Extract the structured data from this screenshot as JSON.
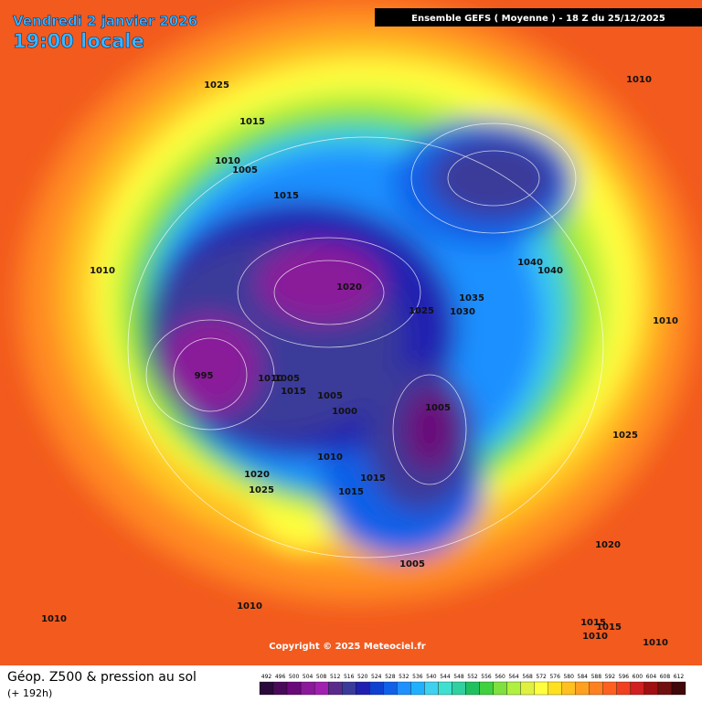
{
  "header": {
    "date": "Vendredi 2 janvier 2026",
    "time": "19:00 locale",
    "model": "Ensemble GEFS  ( Moyenne )  -  18 Z du 25/12/2025"
  },
  "isobar_labels": [
    1025,
    1015,
    1010,
    1005,
    1015,
    1010,
    1010,
    1020,
    1025,
    1030,
    1035,
    1040,
    1040,
    1010,
    995,
    1010,
    1005,
    1015,
    1005,
    1000,
    1005,
    1025,
    1010,
    1015,
    1020,
    1025,
    1015,
    1005,
    1020,
    1010,
    1010,
    1015,
    1015,
    1010,
    1010
  ],
  "copyright": "Copyright © 2025 Meteociel.fr",
  "footer": {
    "title": "Géop. Z500 & pression au sol",
    "lead": "(+ 192h)"
  },
  "scale": {
    "values": [
      492,
      496,
      500,
      504,
      508,
      512,
      516,
      520,
      524,
      528,
      532,
      536,
      540,
      544,
      548,
      552,
      556,
      560,
      564,
      568,
      572,
      576,
      580,
      584,
      588,
      592,
      596,
      600,
      604,
      608,
      612
    ],
    "colors": [
      "#2a0a3a",
      "#4a0a5a",
      "#6a0a7a",
      "#8a1a9a",
      "#a020b0",
      "#5a2a8a",
      "#3a3a9a",
      "#2020b0",
      "#1040d0",
      "#1060e8",
      "#1e90ff",
      "#20b0ff",
      "#40d0f0",
      "#40e0d0",
      "#30d0a0",
      "#20c060",
      "#40d040",
      "#80e040",
      "#b0f040",
      "#e0f040",
      "#ffff40",
      "#ffe020",
      "#ffc020",
      "#ffa020",
      "#ff8020",
      "#ff6020",
      "#f04020",
      "#d02020",
      "#a01010",
      "#701010",
      "#400808"
    ]
  }
}
